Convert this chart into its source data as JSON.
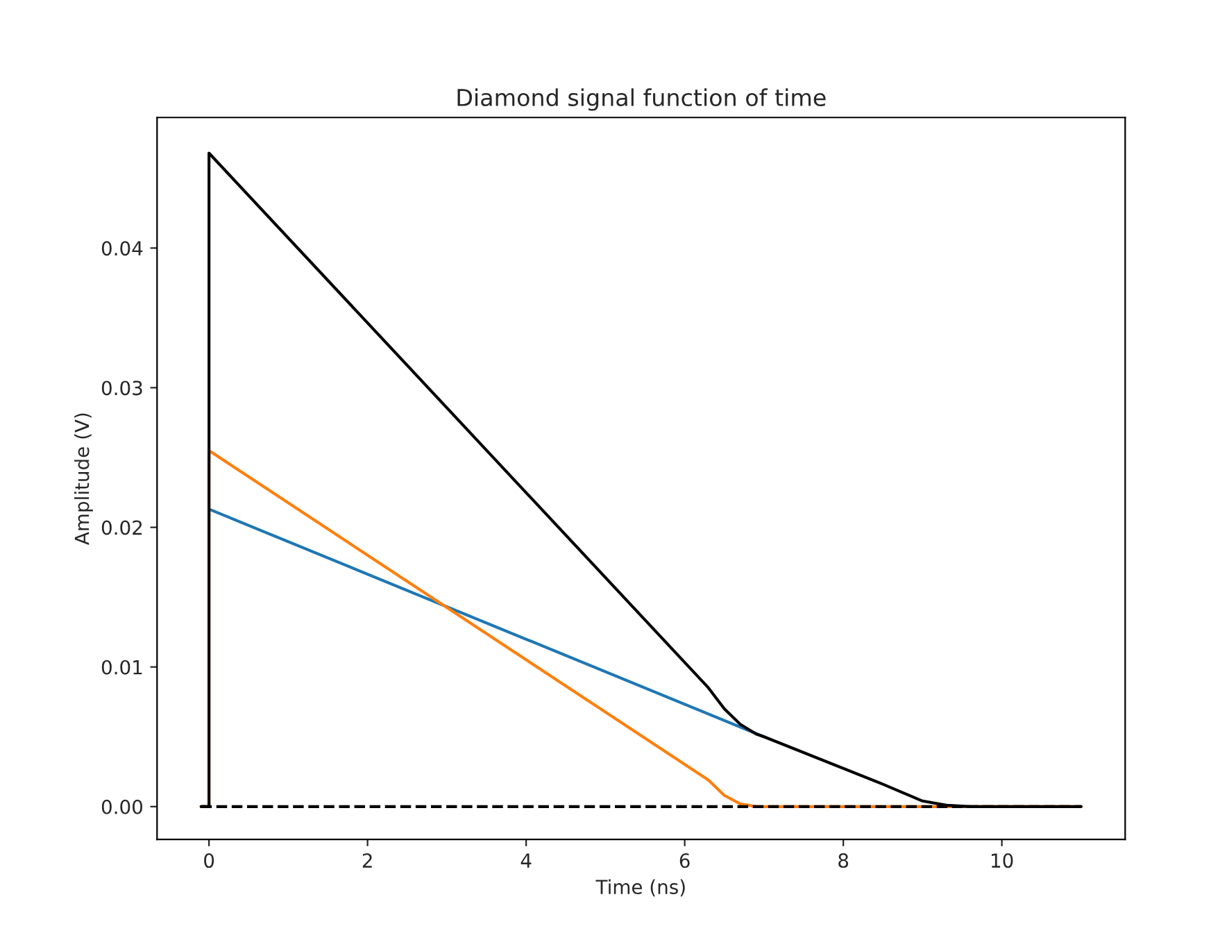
{
  "chart_data": {
    "type": "line",
    "title": "Diamond signal function of time",
    "xlabel": "Time (ns)",
    "ylabel": "Amplitude (V)",
    "xlim": [
      -0.655,
      11.555
    ],
    "ylim": [
      -0.00235,
      0.04935
    ],
    "xticks": [
      0,
      2,
      4,
      6,
      8,
      10
    ],
    "yticks": [
      {
        "value": 0,
        "label": "0.00"
      },
      {
        "value": 0.01,
        "label": "0.01"
      },
      {
        "value": 0.02,
        "label": "0.02"
      },
      {
        "value": 0.03,
        "label": "0.03"
      },
      {
        "value": 0.04,
        "label": "0.04"
      }
    ],
    "grid": false,
    "series": [
      {
        "color": "#1f77b4",
        "x": [
          0,
          7
        ],
        "values": [
          0.0213,
          0.005
        ]
      },
      {
        "color": "#ff7f0e",
        "x": [
          -0.1,
          0,
          0,
          6.3,
          6.5,
          6.7,
          6.9,
          11
        ],
        "values": [
          0,
          0,
          0.0255,
          0.0019,
          0.0008,
          0.0002,
          0,
          0
        ]
      },
      {
        "color": "#000000",
        "x": [
          -0.1,
          0,
          0,
          6.3,
          6.5,
          6.7,
          6.9,
          7,
          8.5,
          9,
          9.3,
          9.6,
          11
        ],
        "values": [
          0,
          0,
          0.0468,
          0.0085,
          0.007,
          0.0059,
          0.0052,
          0.005,
          0.0016,
          0.0004,
          0.0001,
          0,
          0
        ]
      },
      {
        "color": "#000000",
        "line_style": "dashed",
        "x": [
          -0.1,
          11
        ],
        "values": [
          0,
          0
        ]
      }
    ]
  }
}
